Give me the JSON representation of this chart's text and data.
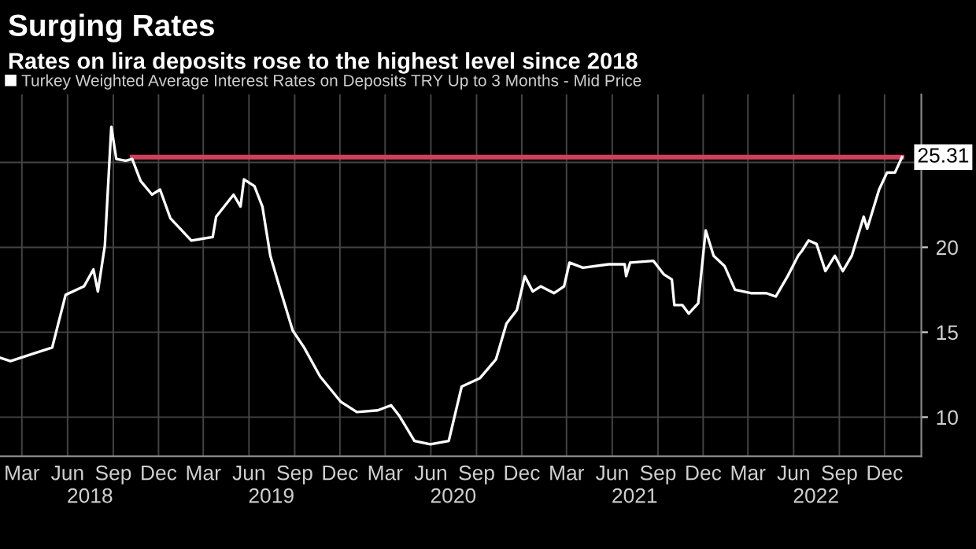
{
  "chart_data": {
    "type": "line",
    "title": "Surging Rates",
    "subtitle": "Rates on lira deposits rose to the highest level since 2018",
    "x": [
      "2018-01-16",
      "2018-02-06",
      "2018-03-30",
      "2018-05-01",
      "2018-05-28",
      "2018-07-04",
      "2018-07-23",
      "2018-08-01",
      "2018-08-15",
      "2018-08-28",
      "2018-09-07",
      "2018-09-26",
      "2018-10-09",
      "2018-10-26",
      "2018-11-18",
      "2018-12-04",
      "2018-12-25",
      "2019-02-05",
      "2019-03-20",
      "2019-03-27",
      "2019-05-01",
      "2019-05-15",
      "2019-05-22",
      "2019-06-12",
      "2019-06-28",
      "2019-07-14",
      "2019-07-30",
      "2019-08-28",
      "2019-09-20",
      "2019-10-22",
      "2019-12-03",
      "2020-01-04",
      "2020-02-15",
      "2020-03-13",
      "2020-03-29",
      "2020-04-29",
      "2020-05-31",
      "2020-07-07",
      "2020-08-02",
      "2020-09-08",
      "2020-10-10",
      "2020-10-31",
      "2020-11-21",
      "2020-12-07",
      "2020-12-23",
      "2021-01-08",
      "2021-02-04",
      "2021-02-24",
      "2021-03-07",
      "2021-04-03",
      "2021-05-25",
      "2021-06-26",
      "2021-06-29",
      "2021-07-07",
      "2021-08-23",
      "2021-09-13",
      "2021-09-29",
      "2021-10-04",
      "2021-10-20",
      "2021-11-02",
      "2021-11-21",
      "2021-12-06",
      "2021-12-22",
      "2022-01-13",
      "2022-02-03",
      "2022-03-07",
      "2022-04-07",
      "2022-04-26",
      "2022-05-20",
      "2022-06-10",
      "2022-06-18",
      "2022-07-01",
      "2022-07-17",
      "2022-08-04",
      "2022-08-23",
      "2022-09-08",
      "2022-09-26",
      "2022-10-20",
      "2022-10-27",
      "2022-11-20",
      "2022-12-06",
      "2022-12-22",
      "2023-01-05"
    ],
    "series": [
      {
        "name": "Turkey Weighted Average Interest Rates on Deposits TRY Up to 3 Months - Mid Price",
        "color": "#ffffff",
        "values": [
          13.5,
          13.3,
          13.8,
          14.1,
          17.2,
          17.7,
          18.7,
          17.4,
          20.1,
          27.1,
          25.2,
          25.1,
          25.2,
          23.9,
          23.1,
          23.4,
          21.7,
          20.4,
          20.6,
          21.8,
          23.1,
          22.4,
          24.0,
          23.6,
          22.4,
          19.5,
          17.9,
          15.1,
          14.1,
          12.4,
          10.9,
          10.3,
          10.4,
          10.7,
          10.1,
          8.6,
          8.4,
          8.6,
          11.8,
          12.3,
          13.4,
          15.5,
          16.3,
          18.3,
          17.4,
          17.7,
          17.3,
          17.7,
          19.1,
          18.8,
          19.0,
          19.0,
          18.3,
          19.1,
          19.2,
          18.4,
          18.1,
          16.6,
          16.6,
          16.1,
          16.7,
          21.0,
          19.5,
          18.9,
          17.5,
          17.3,
          17.3,
          17.1,
          18.3,
          19.5,
          19.8,
          20.4,
          20.2,
          18.6,
          19.5,
          18.6,
          19.5,
          21.8,
          21.1,
          23.4,
          24.4,
          24.4,
          25.31
        ]
      },
      {
        "type": "line",
        "color": "#d0405a",
        "x": [
          "2018-10-09",
          "2023-01-05"
        ],
        "values": [
          25.31,
          25.31
        ]
      }
    ],
    "annotations": [
      {
        "text": "25.31",
        "x": "2023-01-05",
        "y": 25.31
      }
    ],
    "xlim": [
      "2018-01-16",
      "2023-02-13"
    ],
    "xticks": [
      {
        "value": "2018-03-01",
        "label": "Mar"
      },
      {
        "value": "2018-06-01",
        "label": "Jun"
      },
      {
        "value": "2018-09-01",
        "label": "Sep"
      },
      {
        "value": "2018-12-01",
        "label": "Dec"
      },
      {
        "value": "2019-03-01",
        "label": "Mar"
      },
      {
        "value": "2019-06-01",
        "label": "Jun"
      },
      {
        "value": "2019-09-01",
        "label": "Sep"
      },
      {
        "value": "2019-12-01",
        "label": "Dec"
      },
      {
        "value": "2020-03-01",
        "label": "Mar"
      },
      {
        "value": "2020-06-01",
        "label": "Jun"
      },
      {
        "value": "2020-09-01",
        "label": "Sep"
      },
      {
        "value": "2020-12-01",
        "label": "Dec"
      },
      {
        "value": "2021-03-01",
        "label": "Mar"
      },
      {
        "value": "2021-06-01",
        "label": "Jun"
      },
      {
        "value": "2021-09-01",
        "label": "Sep"
      },
      {
        "value": "2021-12-01",
        "label": "Dec"
      },
      {
        "value": "2022-03-01",
        "label": "Mar"
      },
      {
        "value": "2022-06-01",
        "label": "Jun"
      },
      {
        "value": "2022-09-01",
        "label": "Sep"
      },
      {
        "value": "2022-12-01",
        "label": "Dec"
      }
    ],
    "x2lim": [
      "2018-01-16",
      "2023-02-13"
    ],
    "x2ticks": [
      {
        "value": "2018-07-16",
        "label": "2018"
      },
      {
        "value": "2019-07-16",
        "label": "2019"
      },
      {
        "value": "2020-07-16",
        "label": "2020"
      },
      {
        "value": "2021-07-16",
        "label": "2021"
      },
      {
        "value": "2022-07-16",
        "label": "2022"
      }
    ],
    "ylim": [
      7.7,
      29
    ],
    "yticks": [
      10,
      15,
      20,
      {
        "value": 25,
        "label": null
      }
    ],
    "grid": true,
    "legend": "top left",
    "marker": "none",
    "line_style": "solid"
  }
}
